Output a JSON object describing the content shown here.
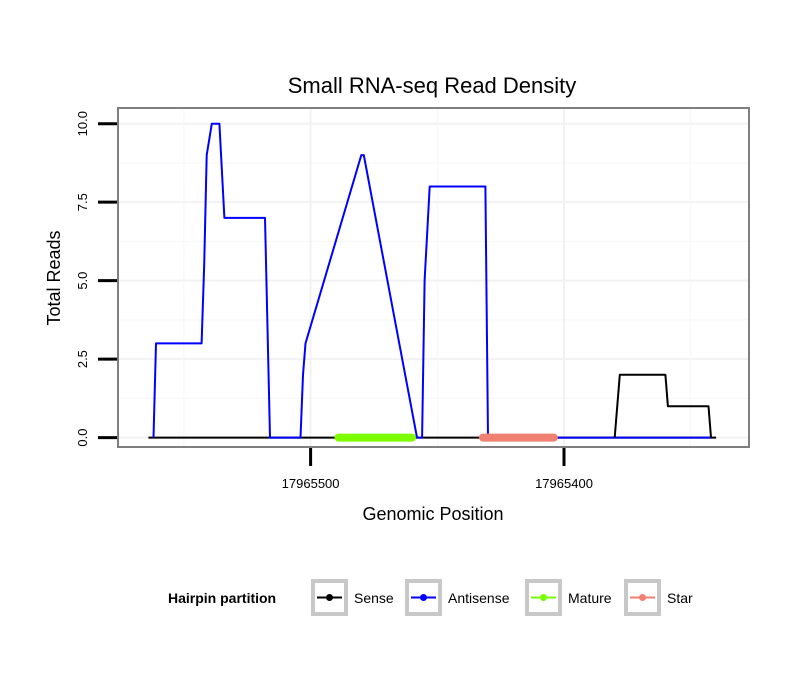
{
  "chart_data": {
    "type": "line",
    "title": "Small RNA-seq Read Density",
    "xlabel": "Genomic Position",
    "ylabel": "Total Reads",
    "x_reversed": true,
    "xlim": [
      17965576,
      17965327
    ],
    "ylim": [
      -0.3,
      10.5
    ],
    "xticks": [
      17965500,
      17965400
    ],
    "xtick_labels": [
      "17965500",
      "17965400"
    ],
    "yticks": [
      0,
      2.5,
      5,
      7.5,
      10
    ],
    "ytick_labels": [
      "0.0",
      "2.5",
      "5.0",
      "7.5",
      "10.0"
    ],
    "grid": true,
    "legend": {
      "title": "Hairpin partition",
      "position": "bottom",
      "entries": [
        {
          "label": "Sense",
          "color": "#000000"
        },
        {
          "label": "Antisense",
          "color": "#0000ff"
        },
        {
          "label": "Mature",
          "color": "#7cfc00"
        },
        {
          "label": "Star",
          "color": "#f08072"
        }
      ]
    },
    "series": [
      {
        "name": "Sense",
        "color": "#000000",
        "x": [
          17965564,
          17965340
        ],
        "y": [
          0,
          0
        ]
      },
      {
        "name": "Antisense",
        "color": "#0000ff",
        "x": [
          17965562,
          17965561,
          17965543,
          17965542,
          17965541,
          17965539,
          17965536,
          17965534,
          17965518,
          17965516,
          17965504,
          17965503,
          17965502,
          17965480,
          17965479,
          17965458,
          17965456,
          17965455,
          17965453,
          17965431,
          17965430,
          17965380,
          17965342
        ],
        "y": [
          0,
          3,
          3,
          5.5,
          9,
          10,
          10,
          7,
          7,
          0,
          0,
          2,
          3,
          9,
          9,
          0,
          0,
          5,
          8,
          8,
          0,
          0,
          0
        ]
      },
      {
        "name": "Sense",
        "color": "#000000",
        "x": [
          17965380,
          17965378,
          17965360,
          17965359,
          17965343,
          17965342
        ],
        "y": [
          0,
          2,
          2,
          1,
          1,
          0
        ]
      },
      {
        "name": "Mature",
        "color": "#7cfc00",
        "x": [
          17965489,
          17965460
        ],
        "y": [
          0,
          0
        ]
      },
      {
        "name": "Star",
        "color": "#f08072",
        "x": [
          17965432,
          17965404
        ],
        "y": [
          0,
          0
        ]
      }
    ]
  }
}
